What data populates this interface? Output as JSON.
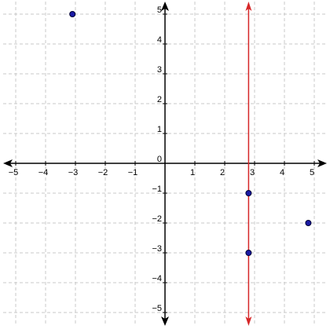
{
  "chart_data": {
    "type": "scatter",
    "title": "",
    "xlabel": "",
    "ylabel": "",
    "xlim": [
      -5.5,
      5.5
    ],
    "ylim": [
      -5.5,
      5.5
    ],
    "grid": true,
    "x_ticks": [
      -5,
      -4,
      -3,
      -2,
      -1,
      1,
      2,
      3,
      4,
      5
    ],
    "y_ticks": [
      -5,
      -4,
      -3,
      -2,
      -1,
      1,
      2,
      3,
      4,
      5
    ],
    "x_tick_labels": [
      "−5",
      "−4",
      "−3",
      "−2",
      "−1",
      "1",
      "2",
      "3",
      "4",
      "5"
    ],
    "y_tick_labels": [
      "−5",
      "−4",
      "−3",
      "−2",
      "−1",
      "1",
      "2",
      "3",
      "4",
      "5"
    ],
    "origin_label": "0",
    "series": [
      {
        "points": [
          {
            "x": -3.1,
            "y": 5
          },
          {
            "x": 2.8,
            "y": -1
          },
          {
            "x": 2.8,
            "y": -3
          },
          {
            "x": 4.8,
            "y": -2
          }
        ],
        "color": "#1a1aa6"
      }
    ],
    "vertical_line": {
      "x": 2.8,
      "color": "#d62728"
    },
    "colors": {
      "axis": "#000000",
      "grid": "#c8c8c8",
      "point_fill": "#1a1aa6",
      "point_stroke": "#000033",
      "line": "#d62728"
    }
  }
}
